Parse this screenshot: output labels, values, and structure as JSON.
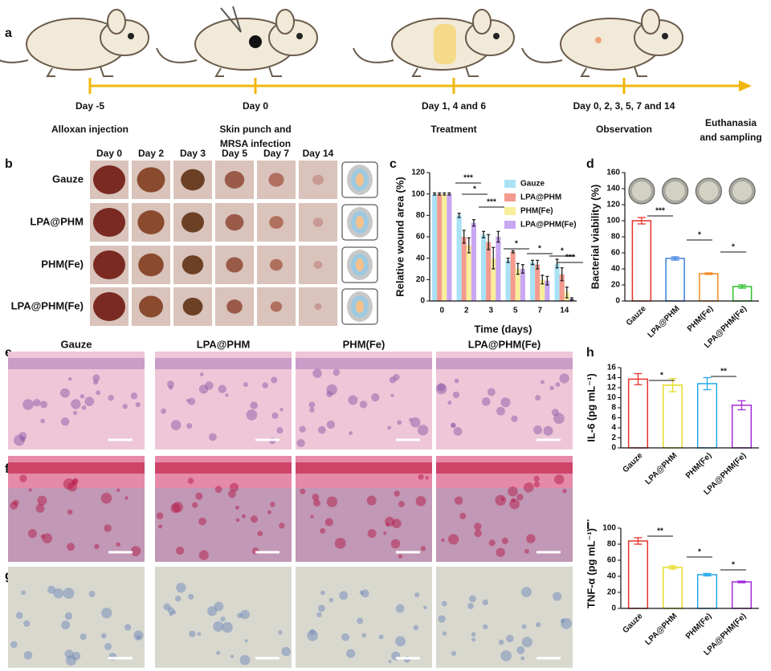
{
  "panel_labels": [
    "a",
    "b",
    "c",
    "d",
    "e",
    "f",
    "g",
    "h",
    "i"
  ],
  "timeline": {
    "events": [
      {
        "day": "Day -5",
        "lines": [
          "Alloxan injection"
        ]
      },
      {
        "day": "Day 0",
        "lines": [
          "Skin punch and",
          "MRSA infection"
        ]
      },
      {
        "day": "Day 1, 4 and 6",
        "lines": [
          "Treatment"
        ]
      },
      {
        "day": "Day 0, 2, 3, 5, 7 and 14",
        "lines": [
          "Observation"
        ]
      },
      {
        "lines": [
          "Euthanasia",
          "and sampling"
        ]
      }
    ]
  },
  "photo_grid": {
    "days": [
      "Day 0",
      "Day 2",
      "Day 3",
      "Day 5",
      "Day 7",
      "Day 14"
    ],
    "groups": [
      "Gauze",
      "LPA@PHM",
      "PHM(Fe)",
      "LPA@PHM(Fe)"
    ]
  },
  "histology": {
    "groups": [
      "Gauze",
      "LPA@PHM",
      "PHM(Fe)",
      "LPA@PHM(Fe)"
    ]
  },
  "chart_data": [
    {
      "type": "grouped-bar",
      "xlabel": "Time (days)",
      "ylabel": "Relative wound area (%)",
      "categories": [
        "0",
        "2",
        "3",
        "5",
        "7",
        "14"
      ],
      "series": [
        {
          "name": "Gauze",
          "color": "#a9e1f5",
          "values": [
            100,
            80,
            62,
            38,
            36,
            35
          ],
          "errors": [
            1,
            2,
            3,
            2,
            2,
            4
          ]
        },
        {
          "name": "LPA@PHM",
          "color": "#f49a8e",
          "values": [
            100,
            60,
            55,
            46,
            34,
            25
          ],
          "errors": [
            1,
            6,
            7,
            1,
            4,
            6
          ]
        },
        {
          "name": "PHM(Fe)",
          "color": "#f8ee9a",
          "values": [
            100,
            52,
            40,
            30,
            20,
            8
          ],
          "errors": [
            1,
            7,
            10,
            5,
            4,
            5
          ]
        },
        {
          "name": "LPA@PHM(Fe)",
          "color": "#c9a6f3",
          "values": [
            100,
            73,
            60,
            30,
            19,
            2
          ],
          "errors": [
            1,
            3,
            5,
            4,
            4,
            1
          ]
        }
      ],
      "ylim": [
        0,
        120
      ],
      "yticks": [
        0,
        20,
        40,
        60,
        80,
        100,
        120
      ],
      "annotations": [
        "***",
        "*",
        "***",
        "*",
        "*",
        "*",
        "***"
      ]
    },
    {
      "type": "bar",
      "bar_style": "outline",
      "ylabel": "Bacterial viability (%)",
      "categories": [
        "Gauze",
        "LPA@PHM",
        "PHM(Fe)",
        "LPA@PHM(Fe)"
      ],
      "values": [
        100,
        53,
        34,
        18
      ],
      "errors": [
        4,
        2,
        1,
        2
      ],
      "colors": [
        "#e8332b",
        "#3a7fe0",
        "#f08a24",
        "#2fbf2f"
      ],
      "ylim": [
        0,
        160
      ],
      "yticks": [
        0,
        20,
        40,
        60,
        80,
        100,
        120,
        140,
        160
      ],
      "annotations": [
        "***",
        "*",
        "*"
      ]
    },
    {
      "type": "bar",
      "bar_style": "outline",
      "ylabel": "IL-6 (pg mL⁻¹)",
      "categories": [
        "Gauze",
        "LPA@PHM",
        "PHM(Fe)",
        "LPA@PHM(Fe)"
      ],
      "values": [
        13.7,
        12.5,
        12.8,
        8.5
      ],
      "errors": [
        1.1,
        1.3,
        1.2,
        0.9
      ],
      "colors": [
        "#e8332b",
        "#e6dc22",
        "#22a7e8",
        "#a22ad8"
      ],
      "ylim": [
        0,
        16
      ],
      "yticks": [
        0,
        2,
        4,
        6,
        8,
        10,
        12,
        14,
        16
      ],
      "annotations": [
        "*",
        "**"
      ]
    },
    {
      "type": "bar",
      "bar_style": "outline",
      "ylabel": "TNF-α (pg mL⁻¹)",
      "categories": [
        "Gauze",
        "LPA@PHM",
        "PHM(Fe)",
        "LPA@PHM(Fe)"
      ],
      "values": [
        84,
        51,
        42,
        33
      ],
      "errors": [
        4,
        2,
        1.5,
        1
      ],
      "colors": [
        "#e8332b",
        "#e6dc22",
        "#22a7e8",
        "#a22ad8"
      ],
      "ylim": [
        0,
        100
      ],
      "yticks": [
        0,
        20,
        40,
        60,
        80,
        100
      ],
      "annotations": [
        "**",
        "*",
        "*"
      ]
    }
  ]
}
